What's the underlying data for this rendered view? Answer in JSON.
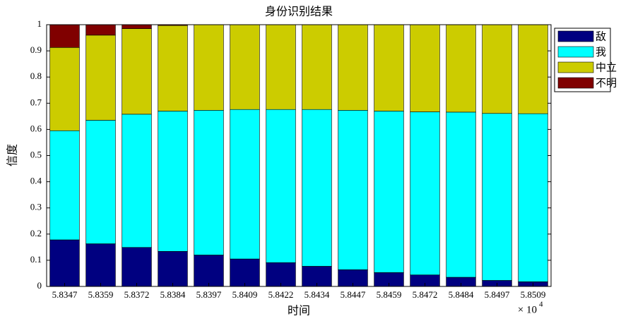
{
  "chart_data": {
    "type": "stacked_bar",
    "title": "身份识别结果",
    "x_label": "时间",
    "y_label": "信度",
    "x_multiplier": {
      "base": "× 10",
      "exponent": "4"
    },
    "categories": [
      "5.8347",
      "5.8359",
      "5.8372",
      "5.8384",
      "5.8397",
      "5.8409",
      "5.8422",
      "5.8434",
      "5.8447",
      "5.8459",
      "5.8472",
      "5.8484",
      "5.8497",
      "5.8509"
    ],
    "series": [
      {
        "name": "敌",
        "color": "#000080",
        "values": [
          0.178,
          0.163,
          0.149,
          0.134,
          0.12,
          0.105,
          0.091,
          0.077,
          0.064,
          0.053,
          0.044,
          0.035,
          0.023,
          0.018
        ]
      },
      {
        "name": "我",
        "color": "#00ffff",
        "values": [
          0.417,
          0.472,
          0.509,
          0.536,
          0.553,
          0.571,
          0.585,
          0.599,
          0.609,
          0.617,
          0.623,
          0.631,
          0.638,
          0.642
        ]
      },
      {
        "name": "中立",
        "color": "#cccc00",
        "values": [
          0.318,
          0.325,
          0.327,
          0.327,
          0.327,
          0.324,
          0.324,
          0.324,
          0.327,
          0.33,
          0.333,
          0.334,
          0.339,
          0.34
        ]
      },
      {
        "name": "不明",
        "color": "#800000",
        "values": [
          0.087,
          0.04,
          0.015,
          0.003,
          0,
          0,
          0,
          0,
          0,
          0,
          0,
          0,
          0,
          0
        ]
      }
    ],
    "ylim": [
      0,
      1
    ],
    "yticks": [
      0,
      0.1,
      0.2,
      0.3,
      0.4,
      0.5,
      0.6,
      0.7,
      0.8,
      0.9,
      1
    ],
    "legend": "outside-top-right"
  }
}
